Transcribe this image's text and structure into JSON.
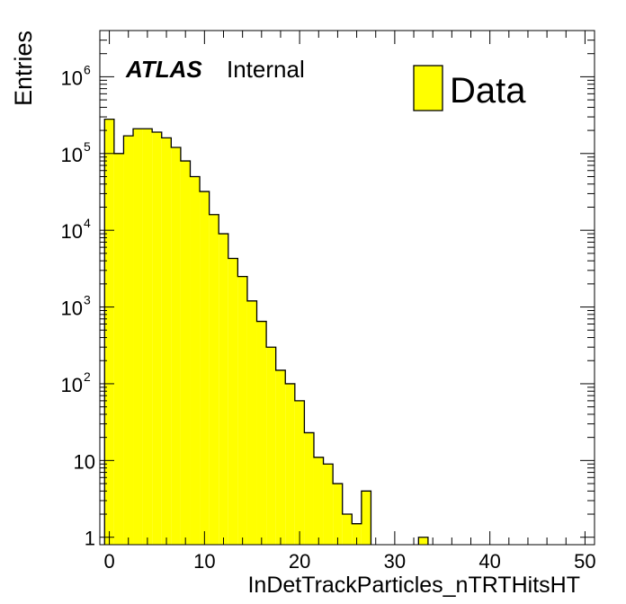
{
  "chart_data": {
    "type": "bar",
    "style": "step-filled histogram",
    "xlabel": "InDetTrackParticles_nTRTHitsHT",
    "ylabel": "Entries",
    "yscale": "log",
    "xlim": [
      -1,
      51
    ],
    "ylim": [
      0.8,
      4000000
    ],
    "bin_width": 1,
    "x_ticks": [
      "0",
      "10",
      "20",
      "30",
      "40",
      "50"
    ],
    "y_ticks": [
      "1",
      "10",
      "10^2",
      "10^3",
      "10^4",
      "10^5",
      "10^6"
    ],
    "legend": {
      "label": "Data",
      "position": "top-right"
    },
    "annotation": {
      "bold": "ATLAS",
      "text": "Internal"
    },
    "series": [
      {
        "name": "Data",
        "fill_color": "#ffff00",
        "line_color": "#000000",
        "bins": [
          {
            "x": 0,
            "y": 280000
          },
          {
            "x": 1,
            "y": 100000
          },
          {
            "x": 2,
            "y": 170000
          },
          {
            "x": 3,
            "y": 210000
          },
          {
            "x": 4,
            "y": 210000
          },
          {
            "x": 5,
            "y": 190000
          },
          {
            "x": 6,
            "y": 160000
          },
          {
            "x": 7,
            "y": 120000
          },
          {
            "x": 8,
            "y": 80000
          },
          {
            "x": 9,
            "y": 50000
          },
          {
            "x": 10,
            "y": 32000
          },
          {
            "x": 11,
            "y": 16000
          },
          {
            "x": 12,
            "y": 9000
          },
          {
            "x": 13,
            "y": 4300
          },
          {
            "x": 14,
            "y": 2500
          },
          {
            "x": 15,
            "y": 1200
          },
          {
            "x": 16,
            "y": 650
          },
          {
            "x": 17,
            "y": 300
          },
          {
            "x": 18,
            "y": 150
          },
          {
            "x": 19,
            "y": 100
          },
          {
            "x": 20,
            "y": 60
          },
          {
            "x": 21,
            "y": 23
          },
          {
            "x": 22,
            "y": 11
          },
          {
            "x": 23,
            "y": 9
          },
          {
            "x": 24,
            "y": 5
          },
          {
            "x": 25,
            "y": 2
          },
          {
            "x": 26,
            "y": 1.5
          },
          {
            "x": 27,
            "y": 4
          },
          {
            "x": 33,
            "y": 1
          }
        ]
      }
    ]
  }
}
